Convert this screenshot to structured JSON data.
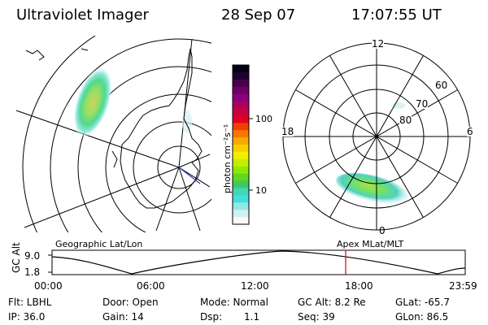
{
  "header": {
    "instrument": "Ultraviolet Imager",
    "date": "28 Sep 07",
    "time": "17:07:55 UT"
  },
  "colorbar": {
    "unit_label": "photon cm⁻²s⁻¹",
    "tick_labels": [
      "100",
      "10"
    ],
    "colors": [
      "#000018",
      "#200030",
      "#48004a",
      "#6a0064",
      "#8a0078",
      "#aa0060",
      "#c80040",
      "#e00020",
      "#f04000",
      "#f87800",
      "#f8a800",
      "#f8d000",
      "#f0f000",
      "#c0f000",
      "#90e800",
      "#60d820",
      "#40c868",
      "#40d8b8",
      "#40e0e0",
      "#90e8e8",
      "#d0f0f0",
      "#f8f8f8"
    ]
  },
  "left_panel": {
    "projection_label": "Geographic Lat/Lon"
  },
  "right_panel": {
    "projection_label": "Apex MLat/MLT",
    "mlt_labels": {
      "top": "12",
      "left": "18",
      "right": "6",
      "bottom": "0"
    },
    "lat_labels": [
      "60",
      "70",
      "80"
    ]
  },
  "altitude_plot": {
    "ylabel": "GC Alt",
    "ytick_labels": [
      "9.0",
      "1.8"
    ],
    "xtick_labels": [
      "00:00",
      "06:00",
      "12:00",
      "18:00",
      "23:59"
    ],
    "marker_color": "#e00000"
  },
  "status": {
    "filter": "Flt: LBHL",
    "ip": "IP: 36.0",
    "door": "Door: Open",
    "gain": "Gain: 14",
    "mode": "Mode: Normal",
    "dsp_label": "Dsp:",
    "dsp_value": "1.1",
    "gc_alt": "GC Alt: 8.2 Re",
    "seq": "Seq: 39",
    "glat": "GLat: -65.7",
    "glon": "GLon: 86.5"
  }
}
